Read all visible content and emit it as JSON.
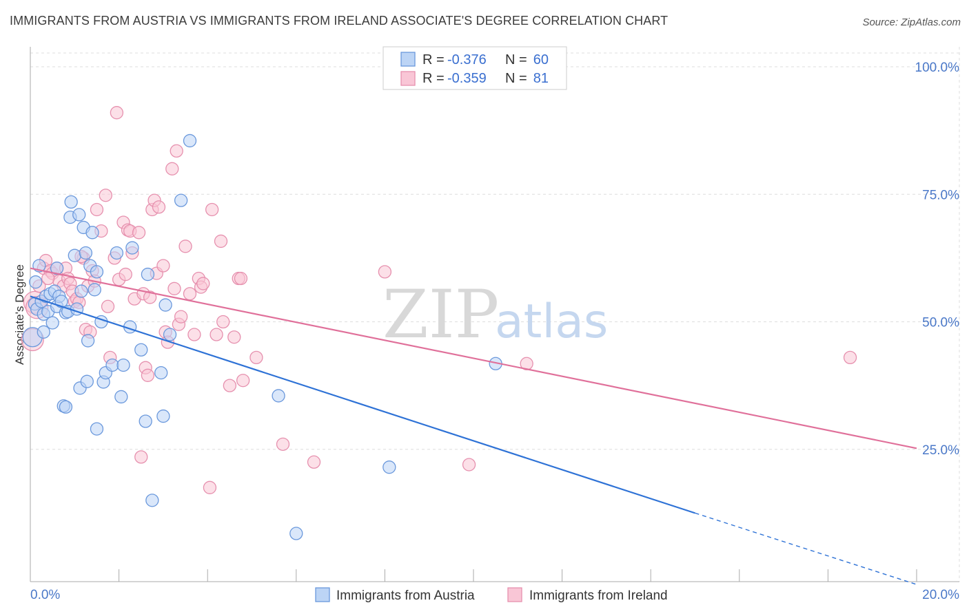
{
  "title": "IMMIGRANTS FROM AUSTRIA VS IMMIGRANTS FROM IRELAND ASSOCIATE'S DEGREE CORRELATION CHART",
  "source": "Source: ZipAtlas.com",
  "watermark": {
    "zip": "ZIP",
    "atlas": "atlas"
  },
  "colors": {
    "austria_fill": "#bcd4f5",
    "austria_stroke": "#6a98dc",
    "austria_line": "#2e72d6",
    "ireland_fill": "#f9c6d6",
    "ireland_stroke": "#e690ae",
    "ireland_line": "#e0709a",
    "grid": "#dddddd",
    "tick_text": "#4a78c8"
  },
  "legend": {
    "austria": {
      "r_label": "R =",
      "r_value": "-0.376",
      "n_label": "N =",
      "n_value": "60"
    },
    "ireland": {
      "r_label": "R =",
      "r_value": "-0.359",
      "n_label": "N =",
      "n_value": "81"
    }
  },
  "chart_data": {
    "type": "scatter",
    "title": "IMMIGRANTS FROM AUSTRIA VS IMMIGRANTS FROM IRELAND ASSOCIATE'S DEGREE CORRELATION CHART",
    "xlabel": "",
    "ylabel": "Associate's Degree",
    "xlim": [
      0,
      20
    ],
    "ylim": [
      0,
      105
    ],
    "x_tick_labels": [
      "0.0%",
      "20.0%"
    ],
    "y_ticks": [
      25,
      50,
      75,
      100
    ],
    "y_tick_labels": [
      "25.0%",
      "50.0%",
      "75.0%",
      "100.0%"
    ],
    "grid": true,
    "legend_position": "top-center",
    "series": [
      {
        "name": "Immigrants from Austria",
        "trend": {
          "x": [
            0,
            15
          ],
          "y": [
            55.0,
            12.5
          ],
          "dashed_extension_x": [
            15,
            20
          ],
          "dashed_extension_y": [
            12.5,
            -1.5
          ]
        },
        "points": [
          [
            0.05,
            47.0
          ],
          [
            0.1,
            53.5
          ],
          [
            0.12,
            57.8
          ],
          [
            0.15,
            52.5
          ],
          [
            0.2,
            61.0
          ],
          [
            0.25,
            54.0
          ],
          [
            0.3,
            51.5
          ],
          [
            0.35,
            55.0
          ],
          [
            0.4,
            52.0
          ],
          [
            0.45,
            55.5
          ],
          [
            0.5,
            49.8
          ],
          [
            0.55,
            56.0
          ],
          [
            0.6,
            53.0
          ],
          [
            0.65,
            55.0
          ],
          [
            0.7,
            54.0
          ],
          [
            0.75,
            33.5
          ],
          [
            0.8,
            51.8
          ],
          [
            0.8,
            33.3
          ],
          [
            0.85,
            52.0
          ],
          [
            0.9,
            70.5
          ],
          [
            0.92,
            73.5
          ],
          [
            1.0,
            63.0
          ],
          [
            1.05,
            52.5
          ],
          [
            1.1,
            71.0
          ],
          [
            1.12,
            37.0
          ],
          [
            1.15,
            56.0
          ],
          [
            1.2,
            68.5
          ],
          [
            1.25,
            63.5
          ],
          [
            1.28,
            38.3
          ],
          [
            1.3,
            46.3
          ],
          [
            1.35,
            61.0
          ],
          [
            1.4,
            67.5
          ],
          [
            1.45,
            56.3
          ],
          [
            1.5,
            59.8
          ],
          [
            1.5,
            29.0
          ],
          [
            1.6,
            50.0
          ],
          [
            1.65,
            38.2
          ],
          [
            1.7,
            40.0
          ],
          [
            1.85,
            41.5
          ],
          [
            1.95,
            63.5
          ],
          [
            2.05,
            35.3
          ],
          [
            2.1,
            41.5
          ],
          [
            2.25,
            49.0
          ],
          [
            2.3,
            64.5
          ],
          [
            2.5,
            44.5
          ],
          [
            2.6,
            30.5
          ],
          [
            2.65,
            59.3
          ],
          [
            2.75,
            15.0
          ],
          [
            2.95,
            40.0
          ],
          [
            3.0,
            31.5
          ],
          [
            3.05,
            53.3
          ],
          [
            3.15,
            47.5
          ],
          [
            3.4,
            73.8
          ],
          [
            3.6,
            85.5
          ],
          [
            5.6,
            35.5
          ],
          [
            6.0,
            8.5
          ],
          [
            8.1,
            21.5
          ],
          [
            10.5,
            41.8
          ],
          [
            0.3,
            48.0
          ],
          [
            0.6,
            60.5
          ]
        ]
      },
      {
        "name": "Immigrants from Ireland",
        "trend": {
          "x": [
            0,
            20
          ],
          "y": [
            60.5,
            25.2
          ]
        },
        "points": [
          [
            0.05,
            46.5
          ],
          [
            0.1,
            53.8
          ],
          [
            0.15,
            52.8
          ],
          [
            0.2,
            57.0
          ],
          [
            0.3,
            60.5
          ],
          [
            0.35,
            62.0
          ],
          [
            0.45,
            60.0
          ],
          [
            0.5,
            59.5
          ],
          [
            0.6,
            60.5
          ],
          [
            0.65,
            58.0
          ],
          [
            0.75,
            57.0
          ],
          [
            0.8,
            60.5
          ],
          [
            0.85,
            58.5
          ],
          [
            0.9,
            57.5
          ],
          [
            0.95,
            56.0
          ],
          [
            1.0,
            54.0
          ],
          [
            1.05,
            54.5
          ],
          [
            1.1,
            53.8
          ],
          [
            1.2,
            62.5
          ],
          [
            1.25,
            48.5
          ],
          [
            1.3,
            57.0
          ],
          [
            1.35,
            48.0
          ],
          [
            1.4,
            60.0
          ],
          [
            1.45,
            58.0
          ],
          [
            1.5,
            72.0
          ],
          [
            1.6,
            67.8
          ],
          [
            1.7,
            74.8
          ],
          [
            1.75,
            53.0
          ],
          [
            1.8,
            43.0
          ],
          [
            1.9,
            62.5
          ],
          [
            1.95,
            91.0
          ],
          [
            2.0,
            58.3
          ],
          [
            2.1,
            69.5
          ],
          [
            2.15,
            59.3
          ],
          [
            2.2,
            68.0
          ],
          [
            2.25,
            67.8
          ],
          [
            2.3,
            63.5
          ],
          [
            2.35,
            54.5
          ],
          [
            2.45,
            67.5
          ],
          [
            2.5,
            23.5
          ],
          [
            2.55,
            55.5
          ],
          [
            2.6,
            41.0
          ],
          [
            2.65,
            39.5
          ],
          [
            2.7,
            54.8
          ],
          [
            2.75,
            72.0
          ],
          [
            2.8,
            73.8
          ],
          [
            2.85,
            59.5
          ],
          [
            2.9,
            72.5
          ],
          [
            3.0,
            61.0
          ],
          [
            3.05,
            48.0
          ],
          [
            3.1,
            46.0
          ],
          [
            3.2,
            80.0
          ],
          [
            3.25,
            56.5
          ],
          [
            3.3,
            83.5
          ],
          [
            3.35,
            49.5
          ],
          [
            3.4,
            51.0
          ],
          [
            3.5,
            64.8
          ],
          [
            3.6,
            55.5
          ],
          [
            3.7,
            47.5
          ],
          [
            3.8,
            58.5
          ],
          [
            3.85,
            56.8
          ],
          [
            3.9,
            57.5
          ],
          [
            4.05,
            17.5
          ],
          [
            4.1,
            72.0
          ],
          [
            4.2,
            47.5
          ],
          [
            4.3,
            65.8
          ],
          [
            4.35,
            50.0
          ],
          [
            4.5,
            37.5
          ],
          [
            4.6,
            47.0
          ],
          [
            4.7,
            58.5
          ],
          [
            4.75,
            58.5
          ],
          [
            4.8,
            38.5
          ],
          [
            5.1,
            43.0
          ],
          [
            5.7,
            26.0
          ],
          [
            6.4,
            22.5
          ],
          [
            8.0,
            59.8
          ],
          [
            9.9,
            22.0
          ],
          [
            11.2,
            41.8
          ],
          [
            18.5,
            43.0
          ],
          [
            0.4,
            58.5
          ],
          [
            1.15,
            62.8
          ]
        ]
      }
    ],
    "bottom_legend": [
      "Immigrants from Austria",
      "Immigrants from Ireland"
    ]
  }
}
